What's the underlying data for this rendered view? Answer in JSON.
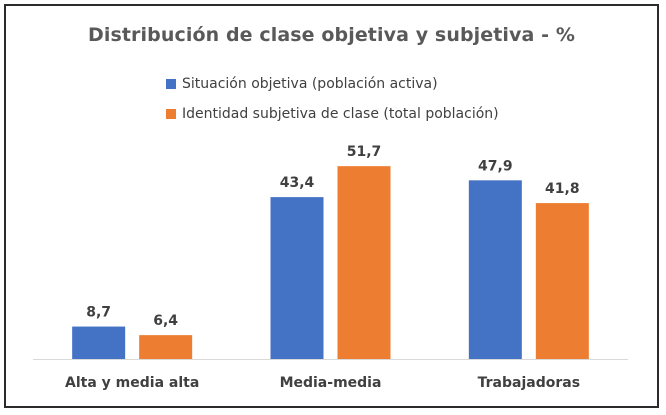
{
  "chart_data": {
    "type": "bar",
    "title": "Distribución de clase objetiva y subjetiva - %",
    "categories": [
      "Alta y media alta",
      "Media-media",
      "Trabajadoras"
    ],
    "series": [
      {
        "name": "Situación objetiva (población activa)",
        "values": [
          8.7,
          43.4,
          47.9
        ],
        "labels": [
          "8,7",
          "43,4",
          "47,9"
        ],
        "color": "#4472C4"
      },
      {
        "name": "Identidad subjetiva de clase (total población)",
        "values": [
          6.4,
          51.7,
          41.8
        ],
        "labels": [
          "6,4",
          "51,7",
          "41,8"
        ],
        "color": "#ED7D31"
      }
    ],
    "ylim": [
      0,
      60
    ],
    "grid": false,
    "legend_position": "top"
  }
}
